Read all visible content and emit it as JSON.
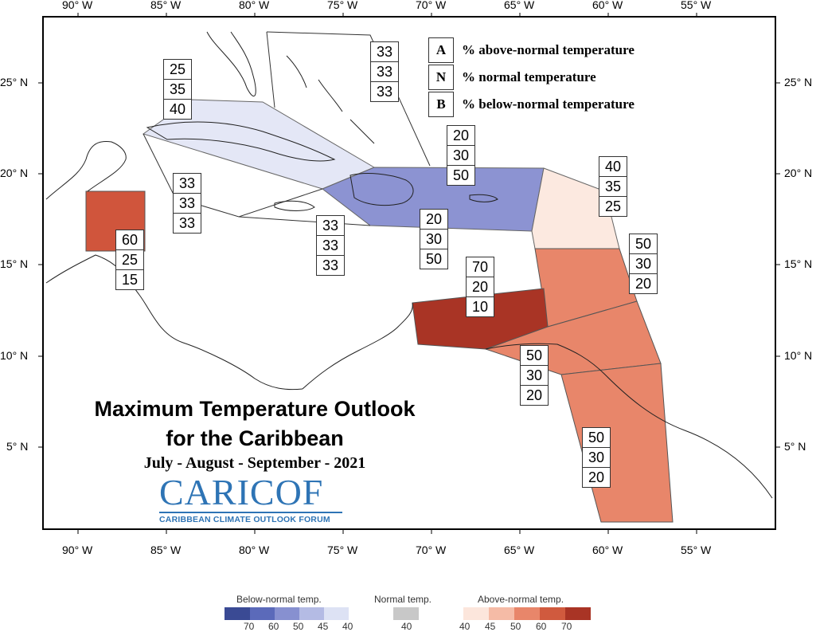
{
  "title_line1": "Maximum Temperature Outlook",
  "title_line2": "for the Caribbean",
  "period": "July - August - September - 2021",
  "logo": {
    "main": "CARICOF",
    "sub": "CARIBBEAN CLIMATE OUTLOOK FORUM"
  },
  "key": [
    {
      "letter": "A",
      "text": "% above-normal temperature"
    },
    {
      "letter": "N",
      "text": "% normal temperature"
    },
    {
      "letter": "B",
      "text": "% below-normal temperature"
    }
  ],
  "lon_labels": [
    "90° W",
    "85° W",
    "80° W",
    "75° W",
    "70° W",
    "65° W",
    "60° W",
    "55° W"
  ],
  "lat_labels": [
    "25° N",
    "20° N",
    "15° N",
    "10° N",
    "5° N"
  ],
  "regions": [
    {
      "name": "bahamas",
      "values": [
        "33",
        "33",
        "33"
      ]
    },
    {
      "name": "cuba",
      "values": [
        "25",
        "35",
        "40"
      ]
    },
    {
      "name": "western-caribbean",
      "values": [
        "33",
        "33",
        "33"
      ]
    },
    {
      "name": "jamaica",
      "values": [
        "33",
        "33",
        "33"
      ]
    },
    {
      "name": "hispaniola-puerto-rico",
      "values": [
        "20",
        "30",
        "50"
      ]
    },
    {
      "name": "caribbean-sea-east",
      "values": [
        "20",
        "30",
        "50"
      ]
    },
    {
      "name": "leeward-islands",
      "values": [
        "40",
        "35",
        "25"
      ]
    },
    {
      "name": "belize",
      "values": [
        "60",
        "25",
        "15"
      ]
    },
    {
      "name": "windward-islands",
      "values": [
        "50",
        "30",
        "20"
      ]
    },
    {
      "name": "abc-islands",
      "values": [
        "70",
        "20",
        "10"
      ]
    },
    {
      "name": "trinidad-tobago",
      "values": [
        "50",
        "30",
        "20"
      ]
    },
    {
      "name": "guianas",
      "values": [
        "50",
        "30",
        "20"
      ]
    }
  ],
  "colorbar": {
    "below_label": "Below-normal temp.",
    "normal_label": "Normal temp.",
    "above_label": "Above-normal temp.",
    "below_colors": [
      "#3a4a94",
      "#5b6aba",
      "#8790d0",
      "#b4bbe4",
      "#dde2f4"
    ],
    "below_ticks": [
      "70",
      "60",
      "50",
      "45",
      "40"
    ],
    "normal_color": "#c8c8c8",
    "normal_ticks": [
      "40"
    ],
    "above_colors": [
      "#fce6dc",
      "#f5bba6",
      "#e8866a",
      "#d05a3e",
      "#a93425"
    ],
    "above_ticks": [
      "40",
      "45",
      "50",
      "60",
      "70"
    ]
  },
  "colors": {
    "cuba": "#e4e7f6",
    "hispaniola": "#8c93d2",
    "leeward": "#fce9e0",
    "belize": "#d0553c",
    "abc": "#a93425",
    "fifty": "#e8866a"
  }
}
